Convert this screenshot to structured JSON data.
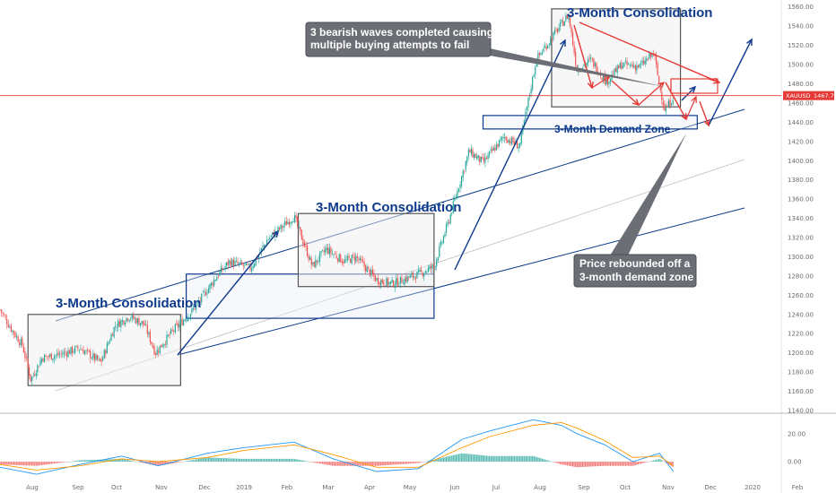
{
  "chart_data": {
    "type": "candlestick",
    "symbol": "XAUUSD",
    "last_price": "1467.71",
    "colors": {
      "up": "#26a69a",
      "down": "#ef5350",
      "annotation_blue": "#0d3a8c",
      "trend_red": "#e53935",
      "callout_bg": "#6b6e75",
      "current_price_line": "#e53935"
    },
    "price_axis": {
      "ticks": [
        "1560.00",
        "1540.00",
        "1520.00",
        "1500.00",
        "1480.00",
        "1460.00",
        "1440.00",
        "1420.00",
        "1400.00",
        "1380.00",
        "1360.00",
        "1340.00",
        "1320.00",
        "1300.00",
        "1280.00",
        "1260.00",
        "1240.00",
        "1220.00",
        "1200.00",
        "1180.00",
        "1160.00",
        "1140.00"
      ],
      "range": [
        1140,
        1570
      ]
    },
    "time_axis": {
      "labels": [
        "Aug",
        "Sep",
        "Oct",
        "Nov",
        "Dec",
        "2019",
        "Feb",
        "Mar",
        "Apr",
        "May",
        "Jun",
        "Jul",
        "Aug",
        "Sep",
        "Oct",
        "Nov",
        "Dec",
        "2020",
        "Feb"
      ]
    },
    "indicator": {
      "type": "macd",
      "ticks": [
        "20.00",
        "0.00"
      ],
      "range": [
        -16,
        34
      ]
    },
    "series_path": [
      [
        "2018-07-25",
        1245
      ],
      [
        "2018-08-02",
        1225
      ],
      [
        "2018-08-10",
        1208
      ],
      [
        "2018-08-16",
        1172
      ],
      [
        "2018-08-24",
        1195
      ],
      [
        "2018-09-05",
        1198
      ],
      [
        "2018-09-20",
        1205
      ],
      [
        "2018-10-05",
        1190
      ],
      [
        "2018-10-15",
        1228
      ],
      [
        "2018-10-25",
        1238
      ],
      [
        "2018-11-05",
        1230
      ],
      [
        "2018-11-13",
        1200
      ],
      [
        "2018-11-25",
        1222
      ],
      [
        "2018-12-10",
        1245
      ],
      [
        "2018-12-28",
        1282
      ],
      [
        "2019-01-05",
        1295
      ],
      [
        "2019-01-20",
        1288
      ],
      [
        "2019-02-01",
        1318
      ],
      [
        "2019-02-20",
        1342
      ],
      [
        "2019-03-05",
        1290
      ],
      [
        "2019-03-15",
        1308
      ],
      [
        "2019-03-28",
        1295
      ],
      [
        "2019-04-05",
        1300
      ],
      [
        "2019-04-20",
        1276
      ],
      [
        "2019-05-01",
        1272
      ],
      [
        "2019-05-20",
        1282
      ],
      [
        "2019-05-31",
        1290
      ],
      [
        "2019-06-10",
        1335
      ],
      [
        "2019-06-25",
        1410
      ],
      [
        "2019-07-05",
        1398
      ],
      [
        "2019-07-20",
        1425
      ],
      [
        "2019-07-31",
        1415
      ],
      [
        "2019-08-12",
        1505
      ],
      [
        "2019-08-25",
        1532
      ],
      [
        "2019-09-04",
        1552
      ],
      [
        "2019-09-10",
        1495
      ],
      [
        "2019-09-20",
        1505
      ],
      [
        "2019-10-01",
        1482
      ],
      [
        "2019-10-12",
        1500
      ],
      [
        "2019-10-25",
        1498
      ],
      [
        "2019-11-04",
        1512
      ],
      [
        "2019-11-08",
        1478
      ],
      [
        "2019-11-12",
        1452
      ],
      [
        "2019-11-18",
        1467
      ]
    ],
    "macd_path": [
      [
        "2018-07-25",
        -4
      ],
      [
        "2018-08-20",
        -9
      ],
      [
        "2018-09-20",
        -2
      ],
      [
        "2018-10-20",
        4
      ],
      [
        "2018-11-15",
        -3
      ],
      [
        "2018-12-20",
        6
      ],
      [
        "2019-01-15",
        10
      ],
      [
        "2019-02-20",
        14
      ],
      [
        "2019-03-20",
        2
      ],
      [
        "2019-04-20",
        -7
      ],
      [
        "2019-05-20",
        -5
      ],
      [
        "2019-06-20",
        16
      ],
      [
        "2019-07-10",
        22
      ],
      [
        "2019-08-10",
        30
      ],
      [
        "2019-08-30",
        26
      ],
      [
        "2019-09-10",
        20
      ],
      [
        "2019-09-30",
        12
      ],
      [
        "2019-10-20",
        0
      ],
      [
        "2019-11-08",
        6
      ],
      [
        "2019-11-18",
        -7
      ]
    ],
    "signal_path": [
      [
        "2018-07-25",
        -2
      ],
      [
        "2018-08-20",
        -6
      ],
      [
        "2018-09-20",
        -3
      ],
      [
        "2018-10-20",
        2
      ],
      [
        "2018-11-15",
        0
      ],
      [
        "2018-12-20",
        3
      ],
      [
        "2019-01-15",
        8
      ],
      [
        "2019-02-20",
        12
      ],
      [
        "2019-03-20",
        5
      ],
      [
        "2019-04-20",
        -4
      ],
      [
        "2019-05-20",
        -4
      ],
      [
        "2019-06-20",
        10
      ],
      [
        "2019-07-10",
        18
      ],
      [
        "2019-08-10",
        26
      ],
      [
        "2019-08-30",
        28
      ],
      [
        "2019-09-10",
        24
      ],
      [
        "2019-09-30",
        15
      ],
      [
        "2019-10-20",
        3
      ],
      [
        "2019-11-08",
        4
      ],
      [
        "2019-11-18",
        -3
      ]
    ],
    "annotations": {
      "consolidation_1": "3-Month Consolidation",
      "consolidation_2": "3-Month Consolidation",
      "consolidation_3": "3-Month Consolidation",
      "demand_zone": "3-Month Demand Zone",
      "callout_top": [
        "3 bearish waves completed causing",
        "multiple buying attempts to fail"
      ],
      "callout_bottom": [
        "Price rebounded off a",
        "3-month demand zone"
      ]
    },
    "zones": {
      "consolidation_1": {
        "x0": "2018-08-14",
        "x1": "2018-12-01",
        "y0": 1166,
        "y1": 1240
      },
      "consolidation_2": {
        "x0": "2019-02-23",
        "x1": "2019-05-31",
        "y0": 1269,
        "y1": 1345
      },
      "consolidation_3": {
        "x0": "2019-08-23",
        "x1": "2019-11-23",
        "y0": 1456,
        "y1": 1558
      },
      "demand_low": {
        "x0": "2018-12-05",
        "x1": "2019-05-31",
        "y0": 1236,
        "y1": 1282
      },
      "demand_high": {
        "x0": "2019-07-05",
        "x1": "2019-12-05",
        "y0": 1433,
        "y1": 1447
      }
    }
  }
}
